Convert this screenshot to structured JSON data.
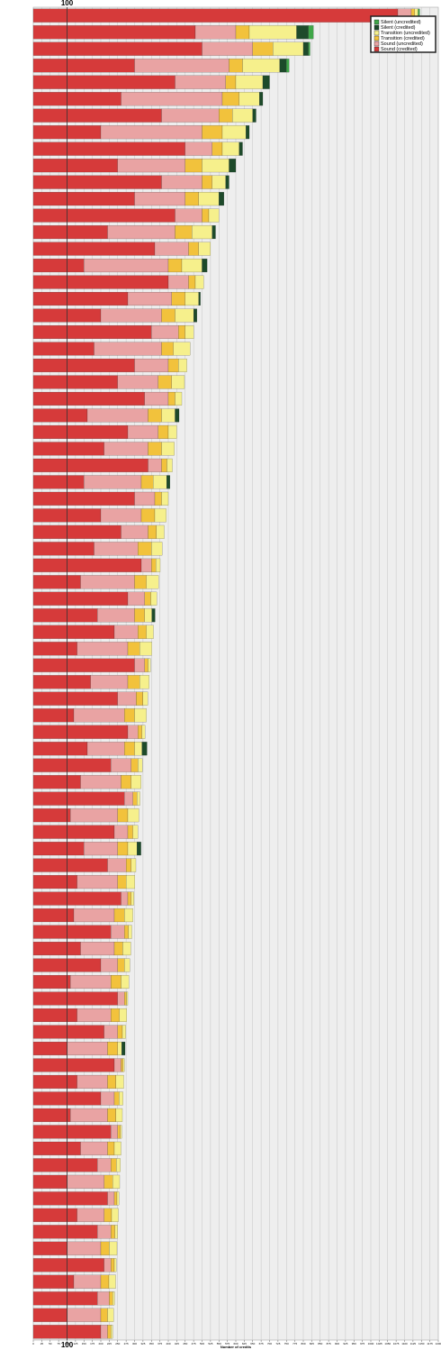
{
  "chart_data": {
    "type": "stacked_barh",
    "x_label": "Number of credits",
    "reference_line": 100,
    "categories": [
      null,
      null,
      null,
      null,
      null,
      null,
      null,
      null,
      null,
      null,
      null,
      null,
      null,
      null,
      null,
      null,
      null,
      null,
      null,
      null,
      null,
      null,
      null,
      null,
      null,
      null,
      null,
      null,
      null,
      null,
      null,
      null,
      null,
      null,
      null,
      null,
      null,
      null,
      null,
      null,
      null,
      null,
      null,
      null,
      null,
      null,
      null,
      null,
      null,
      null,
      null,
      null,
      null,
      null,
      null,
      null,
      null,
      null,
      null,
      null,
      null,
      null,
      null,
      null,
      null,
      null,
      null,
      null,
      null,
      null,
      null,
      null,
      null,
      null,
      null,
      null,
      null,
      null,
      null,
      null
    ],
    "series": [
      {
        "name": "Silent (uncredited)",
        "color": "#3fa648",
        "values": [
          5,
          15,
          5,
          8,
          0,
          0,
          0,
          0,
          0,
          0,
          0,
          0,
          0,
          0,
          0,
          0,
          0,
          0,
          0,
          0,
          0,
          0,
          0,
          0,
          0,
          0,
          0,
          0,
          0,
          0,
          0,
          0,
          0,
          0,
          0,
          0,
          0,
          0,
          0,
          0,
          0,
          0,
          0,
          0,
          0,
          0,
          0,
          0,
          0,
          0,
          0,
          0,
          0,
          0,
          0,
          0,
          0,
          0,
          0,
          0,
          0,
          0,
          0,
          0,
          0,
          0,
          0,
          0,
          0,
          0,
          0,
          0,
          0,
          0,
          0,
          0,
          0,
          0,
          0,
          0
        ]
      },
      {
        "name": "Silent (credited)",
        "color": "#1d4a2a",
        "values": [
          0,
          35,
          15,
          20,
          20,
          10,
          10,
          10,
          10,
          20,
          10,
          15,
          0,
          10,
          0,
          15,
          0,
          5,
          10,
          0,
          0,
          0,
          0,
          0,
          12,
          0,
          0,
          0,
          10,
          0,
          0,
          0,
          0,
          0,
          0,
          0,
          10,
          0,
          0,
          0,
          0,
          0,
          0,
          0,
          15,
          0,
          0,
          0,
          0,
          0,
          12,
          0,
          0,
          0,
          0,
          0,
          0,
          0,
          0,
          0,
          0,
          0,
          10,
          0,
          0,
          0,
          0,
          0,
          0,
          0,
          0,
          0,
          0,
          0,
          0,
          0,
          0,
          0,
          0,
          0
        ]
      },
      {
        "name": "Transition (uncredited)",
        "color": "#f6f08c",
        "values": [
          10,
          140,
          90,
          110,
          80,
          60,
          60,
          70,
          50,
          80,
          40,
          60,
          30,
          60,
          35,
          60,
          25,
          40,
          55,
          25,
          50,
          25,
          38,
          20,
          40,
          25,
          38,
          16,
          40,
          20,
          34,
          23,
          32,
          13,
          36,
          18,
          21,
          21,
          36,
          7,
          28,
          14,
          35,
          9,
          22,
          13,
          29,
          9,
          33,
          15,
          27,
          14,
          26,
          8,
          25,
          10,
          24,
          16,
          23,
          4,
          22,
          10,
          12,
          4,
          23,
          12,
          19,
          4,
          20,
          12,
          21,
          6,
          20,
          8,
          23,
          6,
          20,
          6,
          18,
          5
        ]
      },
      {
        "name": "Transition (credited)",
        "color": "#f2c23c",
        "values": [
          10,
          40,
          60,
          40,
          30,
          50,
          40,
          60,
          30,
          50,
          30,
          40,
          20,
          50,
          30,
          40,
          20,
          40,
          40,
          20,
          35,
          30,
          40,
          20,
          40,
          30,
          40,
          16,
          35,
          20,
          40,
          25,
          40,
          13,
          35,
          18,
          30,
          25,
          35,
          10,
          35,
          20,
          30,
          12,
          30,
          20,
          30,
          12,
          30,
          15,
          30,
          15,
          25,
          10,
          30,
          12,
          25,
          20,
          30,
          6,
          25,
          14,
          30,
          6,
          25,
          14,
          25,
          8,
          20,
          16,
          25,
          8,
          22,
          12,
          25,
          10,
          24,
          10,
          20,
          10
        ]
      },
      {
        "name": "Sound (uncredited)",
        "color": "#e9a3a3",
        "values": [
          40,
          120,
          150,
          280,
          150,
          300,
          170,
          300,
          80,
          200,
          120,
          150,
          80,
          200,
          100,
          250,
          60,
          130,
          180,
          80,
          200,
          100,
          120,
          70,
          180,
          90,
          130,
          40,
          170,
          60,
          120,
          80,
          130,
          30,
          160,
          50,
          110,
          70,
          150,
          30,
          110,
          55,
          150,
          30,
          110,
          60,
          120,
          25,
          140,
          40,
          100,
          55,
          120,
          20,
          120,
          40,
          100,
          50,
          120,
          20,
          100,
          40,
          120,
          20,
          90,
          40,
          110,
          20,
          80,
          40,
          110,
          20,
          80,
          40,
          100,
          20,
          80,
          35,
          100,
          20
        ]
      },
      {
        "name": "Sound (credited)",
        "color": "#d63a3a",
        "values": [
          1080,
          480,
          500,
          300,
          420,
          260,
          380,
          200,
          450,
          250,
          380,
          300,
          420,
          220,
          360,
          150,
          400,
          280,
          200,
          350,
          180,
          300,
          250,
          330,
          160,
          280,
          210,
          340,
          150,
          300,
          200,
          260,
          180,
          320,
          140,
          280,
          190,
          240,
          130,
          300,
          170,
          250,
          120,
          280,
          160,
          230,
          140,
          270,
          110,
          240,
          150,
          220,
          130,
          260,
          120,
          230,
          140,
          200,
          110,
          250,
          130,
          210,
          100,
          240,
          130,
          200,
          110,
          230,
          140,
          190,
          100,
          220,
          130,
          190,
          100,
          210,
          120,
          190,
          100,
          200
        ]
      }
    ],
    "xlim": [
      0,
      1200
    ],
    "xticks": [
      0,
      25,
      50,
      75,
      100,
      125,
      150,
      175,
      200,
      225,
      250,
      275,
      300,
      325,
      350,
      375,
      400,
      425,
      450,
      475,
      500,
      525,
      550,
      575,
      600,
      625,
      650,
      675,
      700,
      725,
      750,
      775,
      800,
      825,
      850,
      875,
      900,
      925,
      950,
      975,
      1000,
      1025,
      1050,
      1075,
      1100,
      1125,
      1150,
      1175,
      1200
    ],
    "grid": true,
    "legend": "top-right"
  }
}
